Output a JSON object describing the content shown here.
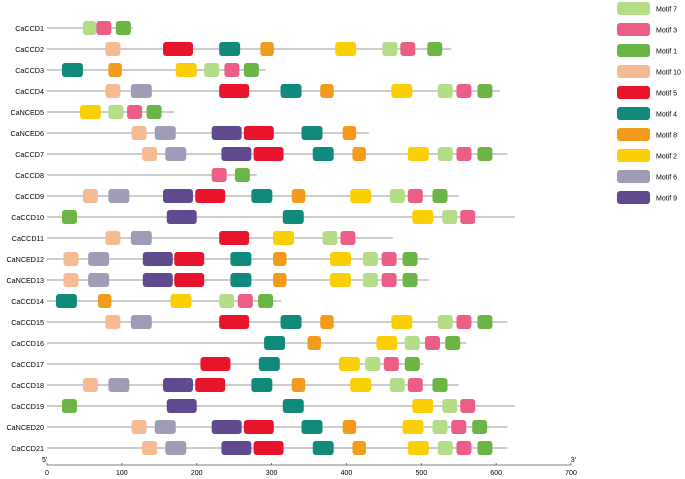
{
  "chart_data": {
    "type": "motif-map",
    "x_axis": {
      "min": 0,
      "max": 700,
      "ticks": [
        0,
        100,
        200,
        300,
        400,
        500,
        600,
        700
      ],
      "start_label": "5'",
      "end_label": "3'"
    },
    "motifs": [
      {
        "id": "m7",
        "name": "Motif 7",
        "color": "#b5dc86"
      },
      {
        "id": "m3",
        "name": "Motif 3",
        "color": "#ec5e85"
      },
      {
        "id": "m1",
        "name": "Motif 1",
        "color": "#6ab545"
      },
      {
        "id": "m10",
        "name": "Motif 10",
        "color": "#f7bb94"
      },
      {
        "id": "m5",
        "name": "Motif 5",
        "color": "#e8142b"
      },
      {
        "id": "m4",
        "name": "Motif 4",
        "color": "#0f8a7b"
      },
      {
        "id": "m8",
        "name": "Motif 8",
        "color": "#f29b1c"
      },
      {
        "id": "m2",
        "name": "Motif 2",
        "color": "#fbcf06"
      },
      {
        "id": "m6",
        "name": "Motif 6",
        "color": "#9f9cb6"
      },
      {
        "id": "m9",
        "name": "Motif 9",
        "color": "#5e4a8c"
      }
    ],
    "genes": [
      {
        "name": "CaCCD1",
        "length": 115,
        "motifs": [
          [
            "m7",
            48,
            66
          ],
          [
            "m3",
            66,
            86
          ],
          [
            "m1",
            92,
            112
          ]
        ]
      },
      {
        "name": "CaCCD2",
        "length": 540,
        "motifs": [
          [
            "m10",
            78,
            98
          ],
          [
            "m5",
            155,
            195
          ],
          [
            "m4",
            230,
            258
          ],
          [
            "m8",
            285,
            303
          ],
          [
            "m2",
            385,
            413
          ],
          [
            "m7",
            448,
            468
          ],
          [
            "m3",
            472,
            492
          ],
          [
            "m1",
            508,
            528
          ]
        ]
      },
      {
        "name": "CaCCD3",
        "length": 292,
        "motifs": [
          [
            "m4",
            20,
            48
          ],
          [
            "m8",
            82,
            100
          ],
          [
            "m2",
            172,
            200
          ],
          [
            "m7",
            210,
            230
          ],
          [
            "m3",
            237,
            257
          ],
          [
            "m1",
            263,
            283
          ]
        ]
      },
      {
        "name": "CaCCD4",
        "length": 605,
        "motifs": [
          [
            "m10",
            78,
            98
          ],
          [
            "m6",
            112,
            140
          ],
          [
            "m5",
            230,
            270
          ],
          [
            "m4",
            312,
            340
          ],
          [
            "m8",
            365,
            383
          ],
          [
            "m2",
            460,
            488
          ],
          [
            "m7",
            522,
            542
          ],
          [
            "m3",
            547,
            567
          ],
          [
            "m1",
            575,
            595
          ]
        ]
      },
      {
        "name": "CaNCED5",
        "length": 170,
        "motifs": [
          [
            "m2",
            44,
            72
          ],
          [
            "m7",
            82,
            102
          ],
          [
            "m3",
            107,
            127
          ],
          [
            "m1",
            133,
            153
          ]
        ]
      },
      {
        "name": "CaNCED6",
        "length": 430,
        "motifs": [
          [
            "m10",
            113,
            133
          ],
          [
            "m6",
            144,
            172
          ],
          [
            "m9",
            220,
            260
          ],
          [
            "m5",
            263,
            303
          ],
          [
            "m4",
            340,
            368
          ],
          [
            "m8",
            395,
            413
          ]
        ]
      },
      {
        "name": "CaCCD7",
        "length": 615,
        "motifs": [
          [
            "m10",
            127,
            147
          ],
          [
            "m6",
            158,
            186
          ],
          [
            "m9",
            233,
            273
          ],
          [
            "m5",
            276,
            316
          ],
          [
            "m4",
            355,
            383
          ],
          [
            "m8",
            408,
            426
          ],
          [
            "m2",
            482,
            510
          ],
          [
            "m7",
            522,
            542
          ],
          [
            "m3",
            547,
            567
          ],
          [
            "m1",
            575,
            595
          ]
        ]
      },
      {
        "name": "CaCCD8",
        "length": 280,
        "motifs": [
          [
            "m3",
            220,
            240
          ],
          [
            "m1",
            251,
            271
          ]
        ]
      },
      {
        "name": "CaCCD9",
        "length": 550,
        "motifs": [
          [
            "m10",
            48,
            68
          ],
          [
            "m6",
            82,
            110
          ],
          [
            "m9",
            155,
            195
          ],
          [
            "m5",
            198,
            238
          ],
          [
            "m4",
            273,
            301
          ],
          [
            "m8",
            327,
            345
          ],
          [
            "m2",
            405,
            433
          ],
          [
            "m7",
            458,
            478
          ],
          [
            "m3",
            482,
            502
          ],
          [
            "m1",
            515,
            535
          ]
        ]
      },
      {
        "name": "CaCCD10",
        "length": 625,
        "motifs": [
          [
            "m1",
            20,
            40
          ],
          [
            "m9",
            160,
            200
          ],
          [
            "m4",
            315,
            343
          ],
          [
            "m2",
            488,
            516
          ],
          [
            "m7",
            528,
            548
          ],
          [
            "m3",
            552,
            572
          ]
        ]
      },
      {
        "name": "CaCCD11",
        "length": 462,
        "motifs": [
          [
            "m10",
            78,
            98
          ],
          [
            "m6",
            112,
            140
          ],
          [
            "m5",
            230,
            270
          ],
          [
            "m2",
            302,
            330
          ],
          [
            "m7",
            368,
            388
          ],
          [
            "m3",
            392,
            412
          ]
        ]
      },
      {
        "name": "CaNCED12",
        "length": 510,
        "motifs": [
          [
            "m10",
            22,
            42
          ],
          [
            "m6",
            55,
            83
          ],
          [
            "m9",
            128,
            168
          ],
          [
            "m5",
            170,
            210
          ],
          [
            "m4",
            245,
            273
          ],
          [
            "m8",
            302,
            320
          ],
          [
            "m2",
            378,
            406
          ],
          [
            "m7",
            422,
            442
          ],
          [
            "m3",
            447,
            467
          ],
          [
            "m1",
            475,
            495
          ]
        ]
      },
      {
        "name": "CaNCED13",
        "length": 510,
        "motifs": [
          [
            "m10",
            22,
            42
          ],
          [
            "m6",
            55,
            83
          ],
          [
            "m9",
            128,
            168
          ],
          [
            "m5",
            170,
            210
          ],
          [
            "m4",
            245,
            273
          ],
          [
            "m8",
            302,
            320
          ],
          [
            "m2",
            378,
            406
          ],
          [
            "m7",
            422,
            442
          ],
          [
            "m3",
            447,
            467
          ],
          [
            "m1",
            475,
            495
          ]
        ]
      },
      {
        "name": "CaCCD14",
        "length": 313,
        "motifs": [
          [
            "m4",
            12,
            40
          ],
          [
            "m8",
            68,
            86
          ],
          [
            "m2",
            165,
            193
          ],
          [
            "m7",
            230,
            250
          ],
          [
            "m3",
            255,
            275
          ],
          [
            "m1",
            282,
            302
          ]
        ]
      },
      {
        "name": "CaCCD15",
        "length": 615,
        "motifs": [
          [
            "m10",
            78,
            98
          ],
          [
            "m6",
            112,
            140
          ],
          [
            "m5",
            230,
            270
          ],
          [
            "m4",
            312,
            340
          ],
          [
            "m8",
            365,
            383
          ],
          [
            "m2",
            460,
            488
          ],
          [
            "m7",
            522,
            542
          ],
          [
            "m3",
            547,
            567
          ],
          [
            "m1",
            575,
            595
          ]
        ]
      },
      {
        "name": "CaCCD16",
        "length": 560,
        "motifs": [
          [
            "m4",
            290,
            318
          ],
          [
            "m8",
            348,
            366
          ],
          [
            "m2",
            440,
            468
          ],
          [
            "m7",
            478,
            498
          ],
          [
            "m3",
            505,
            525
          ],
          [
            "m1",
            532,
            552
          ]
        ]
      },
      {
        "name": "CaCCD17",
        "length": 503,
        "motifs": [
          [
            "m5",
            205,
            245
          ],
          [
            "m4",
            283,
            311
          ],
          [
            "m2",
            390,
            418
          ],
          [
            "m7",
            425,
            445
          ],
          [
            "m3",
            450,
            470
          ],
          [
            "m1",
            478,
            498
          ]
        ]
      },
      {
        "name": "CaCCD18",
        "length": 550,
        "motifs": [
          [
            "m10",
            48,
            68
          ],
          [
            "m6",
            82,
            110
          ],
          [
            "m9",
            155,
            195
          ],
          [
            "m5",
            198,
            238
          ],
          [
            "m4",
            273,
            301
          ],
          [
            "m8",
            327,
            345
          ],
          [
            "m2",
            405,
            433
          ],
          [
            "m7",
            458,
            478
          ],
          [
            "m3",
            482,
            502
          ],
          [
            "m1",
            515,
            535
          ]
        ]
      },
      {
        "name": "CaCCD19",
        "length": 625,
        "motifs": [
          [
            "m1",
            20,
            40
          ],
          [
            "m9",
            160,
            200
          ],
          [
            "m4",
            315,
            343
          ],
          [
            "m2",
            488,
            516
          ],
          [
            "m7",
            528,
            548
          ],
          [
            "m3",
            552,
            572
          ]
        ]
      },
      {
        "name": "CaNCED20",
        "length": 615,
        "motifs": [
          [
            "m10",
            113,
            133
          ],
          [
            "m6",
            144,
            172
          ],
          [
            "m9",
            220,
            260
          ],
          [
            "m5",
            263,
            303
          ],
          [
            "m4",
            340,
            368
          ],
          [
            "m8",
            395,
            413
          ],
          [
            "m2",
            475,
            503
          ],
          [
            "m7",
            515,
            535
          ],
          [
            "m3",
            540,
            560
          ],
          [
            "m1",
            568,
            588
          ]
        ]
      },
      {
        "name": "CaCCD21",
        "length": 615,
        "motifs": [
          [
            "m10",
            127,
            147
          ],
          [
            "m6",
            158,
            186
          ],
          [
            "m9",
            233,
            273
          ],
          [
            "m5",
            276,
            316
          ],
          [
            "m4",
            355,
            383
          ],
          [
            "m8",
            408,
            426
          ],
          [
            "m2",
            482,
            510
          ],
          [
            "m7",
            522,
            542
          ],
          [
            "m3",
            547,
            567
          ],
          [
            "m1",
            575,
            595
          ]
        ]
      }
    ]
  }
}
